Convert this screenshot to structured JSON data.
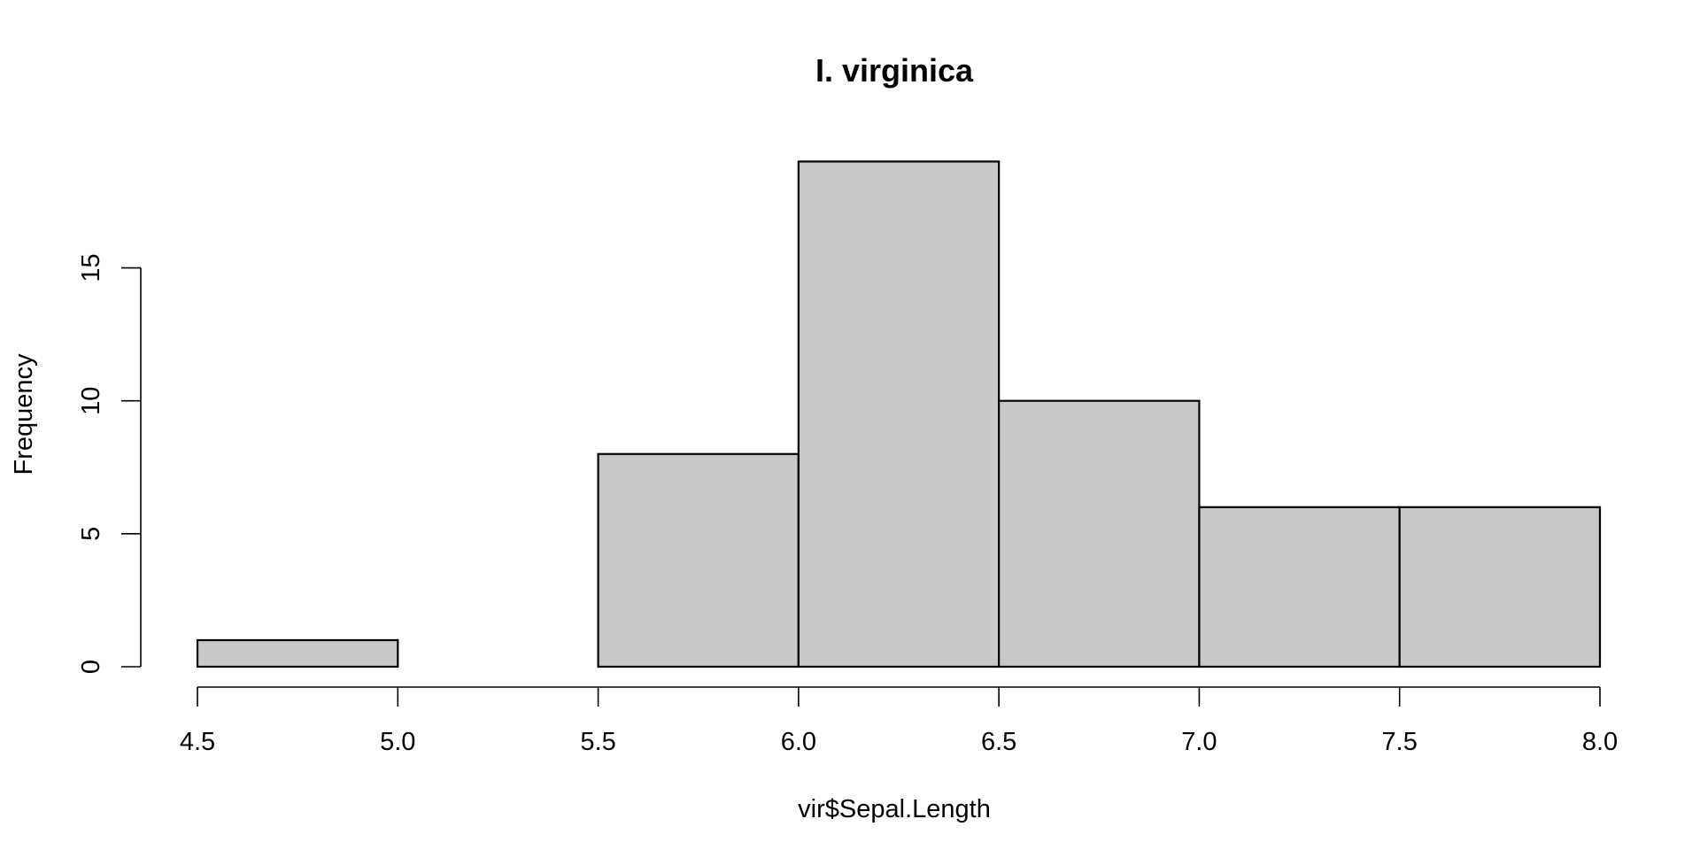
{
  "chart_data": {
    "type": "bar",
    "title": "I. virginica",
    "xlabel": "vir$Sepal.Length",
    "ylabel": "Frequency",
    "bins": [
      {
        "start": 4.5,
        "end": 5.0,
        "count": 1
      },
      {
        "start": 5.0,
        "end": 5.5,
        "count": 0
      },
      {
        "start": 5.5,
        "end": 6.0,
        "count": 8
      },
      {
        "start": 6.0,
        "end": 6.5,
        "count": 19
      },
      {
        "start": 6.5,
        "end": 7.0,
        "count": 10
      },
      {
        "start": 7.0,
        "end": 7.5,
        "count": 6
      },
      {
        "start": 7.5,
        "end": 8.0,
        "count": 6
      }
    ],
    "xlim": [
      4.5,
      8.0
    ],
    "ylim": [
      0,
      19
    ],
    "x_ticks": [
      4.5,
      5.0,
      5.5,
      6.0,
      6.5,
      7.0,
      7.5,
      8.0
    ],
    "x_tick_labels": [
      "4.5",
      "5.0",
      "5.5",
      "6.0",
      "6.5",
      "7.0",
      "7.5",
      "8.0"
    ],
    "y_ticks": [
      0,
      5,
      10,
      15
    ],
    "y_tick_labels": [
      "0",
      "5",
      "10",
      "15"
    ],
    "bar_color": "#c8c8c8",
    "grid": false,
    "legend": "none"
  }
}
